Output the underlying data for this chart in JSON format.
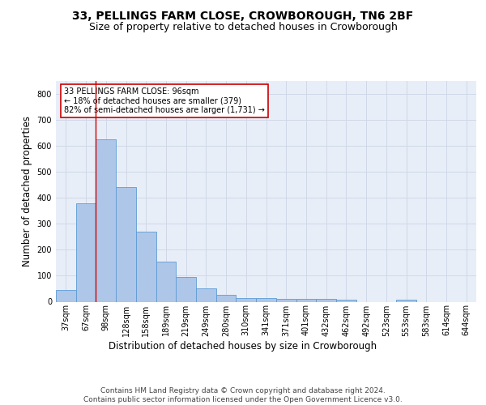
{
  "title": "33, PELLINGS FARM CLOSE, CROWBOROUGH, TN6 2BF",
  "subtitle": "Size of property relative to detached houses in Crowborough",
  "xlabel": "Distribution of detached houses by size in Crowborough",
  "ylabel": "Number of detached properties",
  "categories": [
    "37sqm",
    "67sqm",
    "98sqm",
    "128sqm",
    "158sqm",
    "189sqm",
    "219sqm",
    "249sqm",
    "280sqm",
    "310sqm",
    "341sqm",
    "371sqm",
    "401sqm",
    "432sqm",
    "462sqm",
    "492sqm",
    "523sqm",
    "553sqm",
    "583sqm",
    "614sqm",
    "644sqm"
  ],
  "values": [
    45,
    380,
    625,
    440,
    270,
    155,
    95,
    52,
    28,
    15,
    15,
    11,
    11,
    10,
    8,
    0,
    0,
    8,
    0,
    0,
    0
  ],
  "bar_color": "#aec6e8",
  "bar_edge_color": "#5b9bd5",
  "annotation_text": "33 PELLINGS FARM CLOSE: 96sqm\n← 18% of detached houses are smaller (379)\n82% of semi-detached houses are larger (1,731) →",
  "annotation_box_color": "#ffffff",
  "annotation_box_edge_color": "#cc0000",
  "red_line_color": "#cc0000",
  "red_line_x": 1.5,
  "ylim": [
    0,
    850
  ],
  "yticks": [
    0,
    100,
    200,
    300,
    400,
    500,
    600,
    700,
    800
  ],
  "grid_color": "#d0d8e8",
  "background_color": "#e8eef8",
  "footer_text": "Contains HM Land Registry data © Crown copyright and database right 2024.\nContains public sector information licensed under the Open Government Licence v3.0.",
  "title_fontsize": 10,
  "subtitle_fontsize": 9,
  "axis_label_fontsize": 8.5,
  "tick_fontsize": 7,
  "footer_fontsize": 6.5,
  "annotation_fontsize": 7
}
